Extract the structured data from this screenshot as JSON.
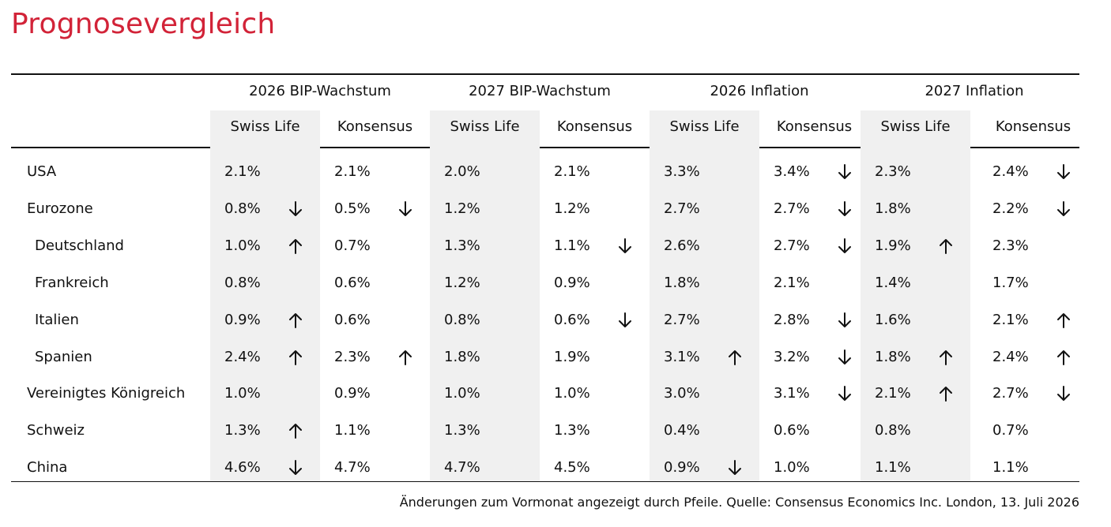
{
  "title": "Prognosevergleich",
  "groups": [
    "2026 BIP-Wachstum",
    "2027 BIP-Wachstum",
    "2026 Inflation",
    "2027 Inflation"
  ],
  "subheaders": [
    "Swiss Life",
    "Konsensus"
  ],
  "rows": [
    {
      "label": "USA",
      "indent": false,
      "values": [
        "2.1%",
        "2.1%",
        "2.0%",
        "2.1%",
        "3.3%",
        "3.4%",
        "2.3%",
        "2.4%"
      ],
      "arrows": [
        "",
        "",
        "",
        "",
        "",
        "down",
        "",
        "down"
      ]
    },
    {
      "label": "Eurozone",
      "indent": false,
      "values": [
        "0.8%",
        "0.5%",
        "1.2%",
        "1.2%",
        "2.7%",
        "2.7%",
        "1.8%",
        "2.2%"
      ],
      "arrows": [
        "down",
        "down",
        "",
        "",
        "",
        "down",
        "",
        "down"
      ]
    },
    {
      "label": "Deutschland",
      "indent": true,
      "values": [
        "1.0%",
        "0.7%",
        "1.3%",
        "1.1%",
        "2.6%",
        "2.7%",
        "1.9%",
        "2.3%"
      ],
      "arrows": [
        "up",
        "",
        "",
        "down",
        "",
        "down",
        "up",
        ""
      ]
    },
    {
      "label": "Frankreich",
      "indent": true,
      "values": [
        "0.8%",
        "0.6%",
        "1.2%",
        "0.9%",
        "1.8%",
        "2.1%",
        "1.4%",
        "1.7%"
      ],
      "arrows": [
        "",
        "",
        "",
        "",
        "",
        "",
        "",
        ""
      ]
    },
    {
      "label": "Italien",
      "indent": true,
      "values": [
        "0.9%",
        "0.6%",
        "0.8%",
        "0.6%",
        "2.7%",
        "2.8%",
        "1.6%",
        "2.1%"
      ],
      "arrows": [
        "up",
        "",
        "",
        "down",
        "",
        "down",
        "",
        "up"
      ]
    },
    {
      "label": "Spanien",
      "indent": true,
      "values": [
        "2.4%",
        "2.3%",
        "1.8%",
        "1.9%",
        "3.1%",
        "3.2%",
        "1.8%",
        "2.4%"
      ],
      "arrows": [
        "up",
        "up",
        "",
        "",
        "up",
        "down",
        "up",
        "up"
      ]
    },
    {
      "label": "Vereinigtes Königreich",
      "indent": false,
      "values": [
        "1.0%",
        "0.9%",
        "1.0%",
        "1.0%",
        "3.0%",
        "3.1%",
        "2.1%",
        "2.7%"
      ],
      "arrows": [
        "",
        "",
        "",
        "",
        "",
        "down",
        "up",
        "down"
      ]
    },
    {
      "label": "Schweiz",
      "indent": false,
      "values": [
        "1.3%",
        "1.1%",
        "1.3%",
        "1.3%",
        "0.4%",
        "0.6%",
        "0.8%",
        "0.7%"
      ],
      "arrows": [
        "up",
        "",
        "",
        "",
        "",
        "",
        "",
        ""
      ]
    },
    {
      "label": "China",
      "indent": false,
      "values": [
        "4.6%",
        "4.7%",
        "4.7%",
        "4.5%",
        "0.9%",
        "1.0%",
        "1.1%",
        "1.1%"
      ],
      "arrows": [
        "down",
        "",
        "",
        "",
        "down",
        "",
        "",
        ""
      ]
    }
  ],
  "footer": "Änderungen zum Vormonat angezeigt durch Pfeile. Quelle: Consensus Economics Inc. London, 13. Juli 2026"
}
